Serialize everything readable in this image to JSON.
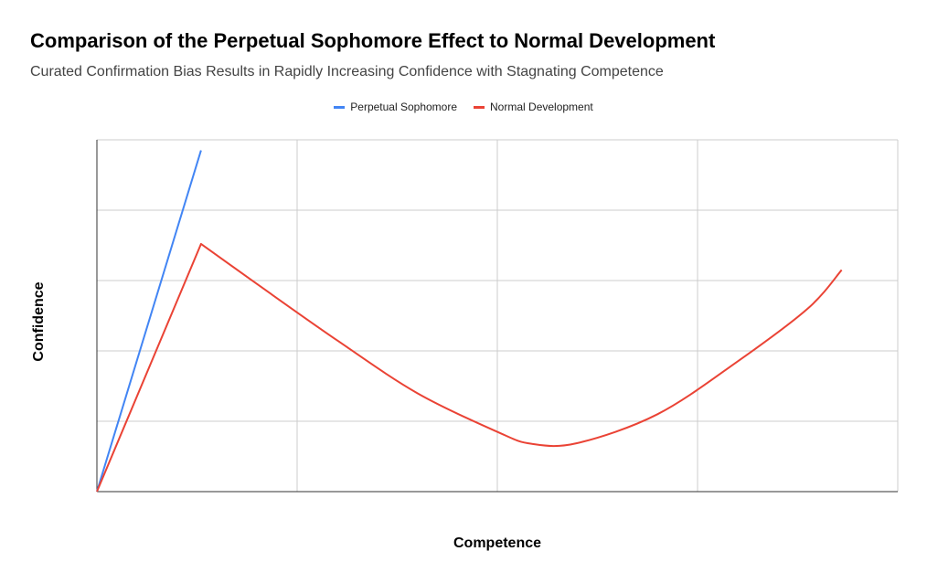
{
  "chart_data": {
    "type": "line",
    "title": "Comparison of the Perpetual Sophomore Effect to Normal Development",
    "subtitle": "Curated Confirmation Bias Results in Rapidly Increasing Confidence with Stagnating Competence",
    "xlabel": "Competence",
    "ylabel": "Confidence",
    "xlim": [
      0,
      4
    ],
    "ylim": [
      0,
      5
    ],
    "grid": true,
    "legend_position": "top-center",
    "series": [
      {
        "name": "Perpetual Sophomore",
        "color": "#4285f4",
        "x": [
          0,
          0.52
        ],
        "y": [
          0,
          4.85
        ]
      },
      {
        "name": "Normal Development",
        "color": "#ea4335",
        "x": [
          0,
          0.52,
          0.8,
          1.2,
          1.6,
          2.0,
          2.17,
          2.4,
          2.8,
          3.2,
          3.55,
          3.72
        ],
        "y": [
          0,
          3.52,
          2.95,
          2.15,
          1.4,
          0.85,
          0.68,
          0.69,
          1.1,
          1.85,
          2.6,
          3.15
        ]
      }
    ]
  }
}
